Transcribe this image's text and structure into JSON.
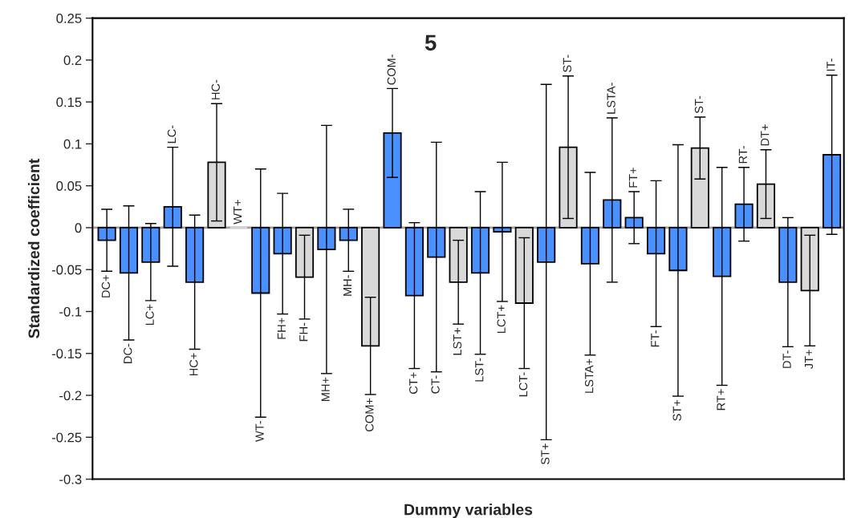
{
  "chart_data": {
    "type": "bar",
    "title": "5",
    "xlabel": "Dummy variables",
    "ylabel": "Standardized coefficient",
    "categories": [
      "DC+",
      "DC-",
      "LC+",
      "LC-",
      "HC+",
      "HC-",
      "WT+",
      "WT-",
      "FH+",
      "FH-",
      "MH+",
      "MH-",
      "COM+",
      "COM-",
      "CT+",
      "CT-",
      "LST+",
      "LST-",
      "LCT+",
      "LCT-",
      "ST+",
      "ST-",
      "LSTA+",
      "LSTA-",
      "FT+",
      "FT-",
      "ST+",
      "ST-",
      "RT+",
      "RT-",
      "DT+",
      "DT-",
      "JT+",
      "IT-"
    ],
    "values": [
      -0.015,
      -0.054,
      -0.041,
      0.025,
      -0.065,
      0.078,
      0,
      -0.078,
      -0.031,
      -0.059,
      -0.026,
      -0.015,
      -0.141,
      0.113,
      -0.081,
      -0.035,
      -0.065,
      -0.054,
      -0.005,
      -0.09,
      -0.041,
      0.096,
      -0.043,
      0.033,
      0.012,
      -0.031,
      -0.051,
      0.095,
      -0.058,
      0.028,
      0.052,
      -0.065,
      -0.075,
      0.087
    ],
    "errors": [
      0.037,
      0.08,
      0.046,
      0.071,
      0.08,
      0.07,
      null,
      0.148,
      0.072,
      0.05,
      0.148,
      0.037,
      0.058,
      0.053,
      0.087,
      0.137,
      0.05,
      0.097,
      0.083,
      0.078,
      0.212,
      0.085,
      0.109,
      0.098,
      0.031,
      0.087,
      0.15,
      0.037,
      0.13,
      0.044,
      0.041,
      0.077,
      0.066,
      0.095
    ],
    "colors": [
      "#4a90ff",
      "#4a90ff",
      "#4a90ff",
      "#4a90ff",
      "#4a90ff",
      "#d9d9d9",
      "#d9d9d9",
      "#4a90ff",
      "#4a90ff",
      "#d9d9d9",
      "#4a90ff",
      "#4a90ff",
      "#d9d9d9",
      "#4a90ff",
      "#4a90ff",
      "#4a90ff",
      "#d9d9d9",
      "#4a90ff",
      "#4a90ff",
      "#d9d9d9",
      "#4a90ff",
      "#d9d9d9",
      "#4a90ff",
      "#4a90ff",
      "#4a90ff",
      "#4a90ff",
      "#4a90ff",
      "#d9d9d9",
      "#4a90ff",
      "#4a90ff",
      "#d9d9d9",
      "#4a90ff",
      "#d9d9d9",
      "#4a90ff"
    ],
    "ylim": [
      -0.3,
      0.25
    ],
    "yticks": [
      -0.3,
      -0.25,
      -0.2,
      -0.15,
      -0.1,
      -0.05,
      0,
      0.05,
      0.1,
      0.15,
      0.2,
      0.25
    ],
    "ref_lines": [
      {
        "axis": "y",
        "value": 0,
        "color": "#a0a0a0"
      }
    ],
    "tick_labels": "y",
    "grid": false,
    "legend": false
  }
}
